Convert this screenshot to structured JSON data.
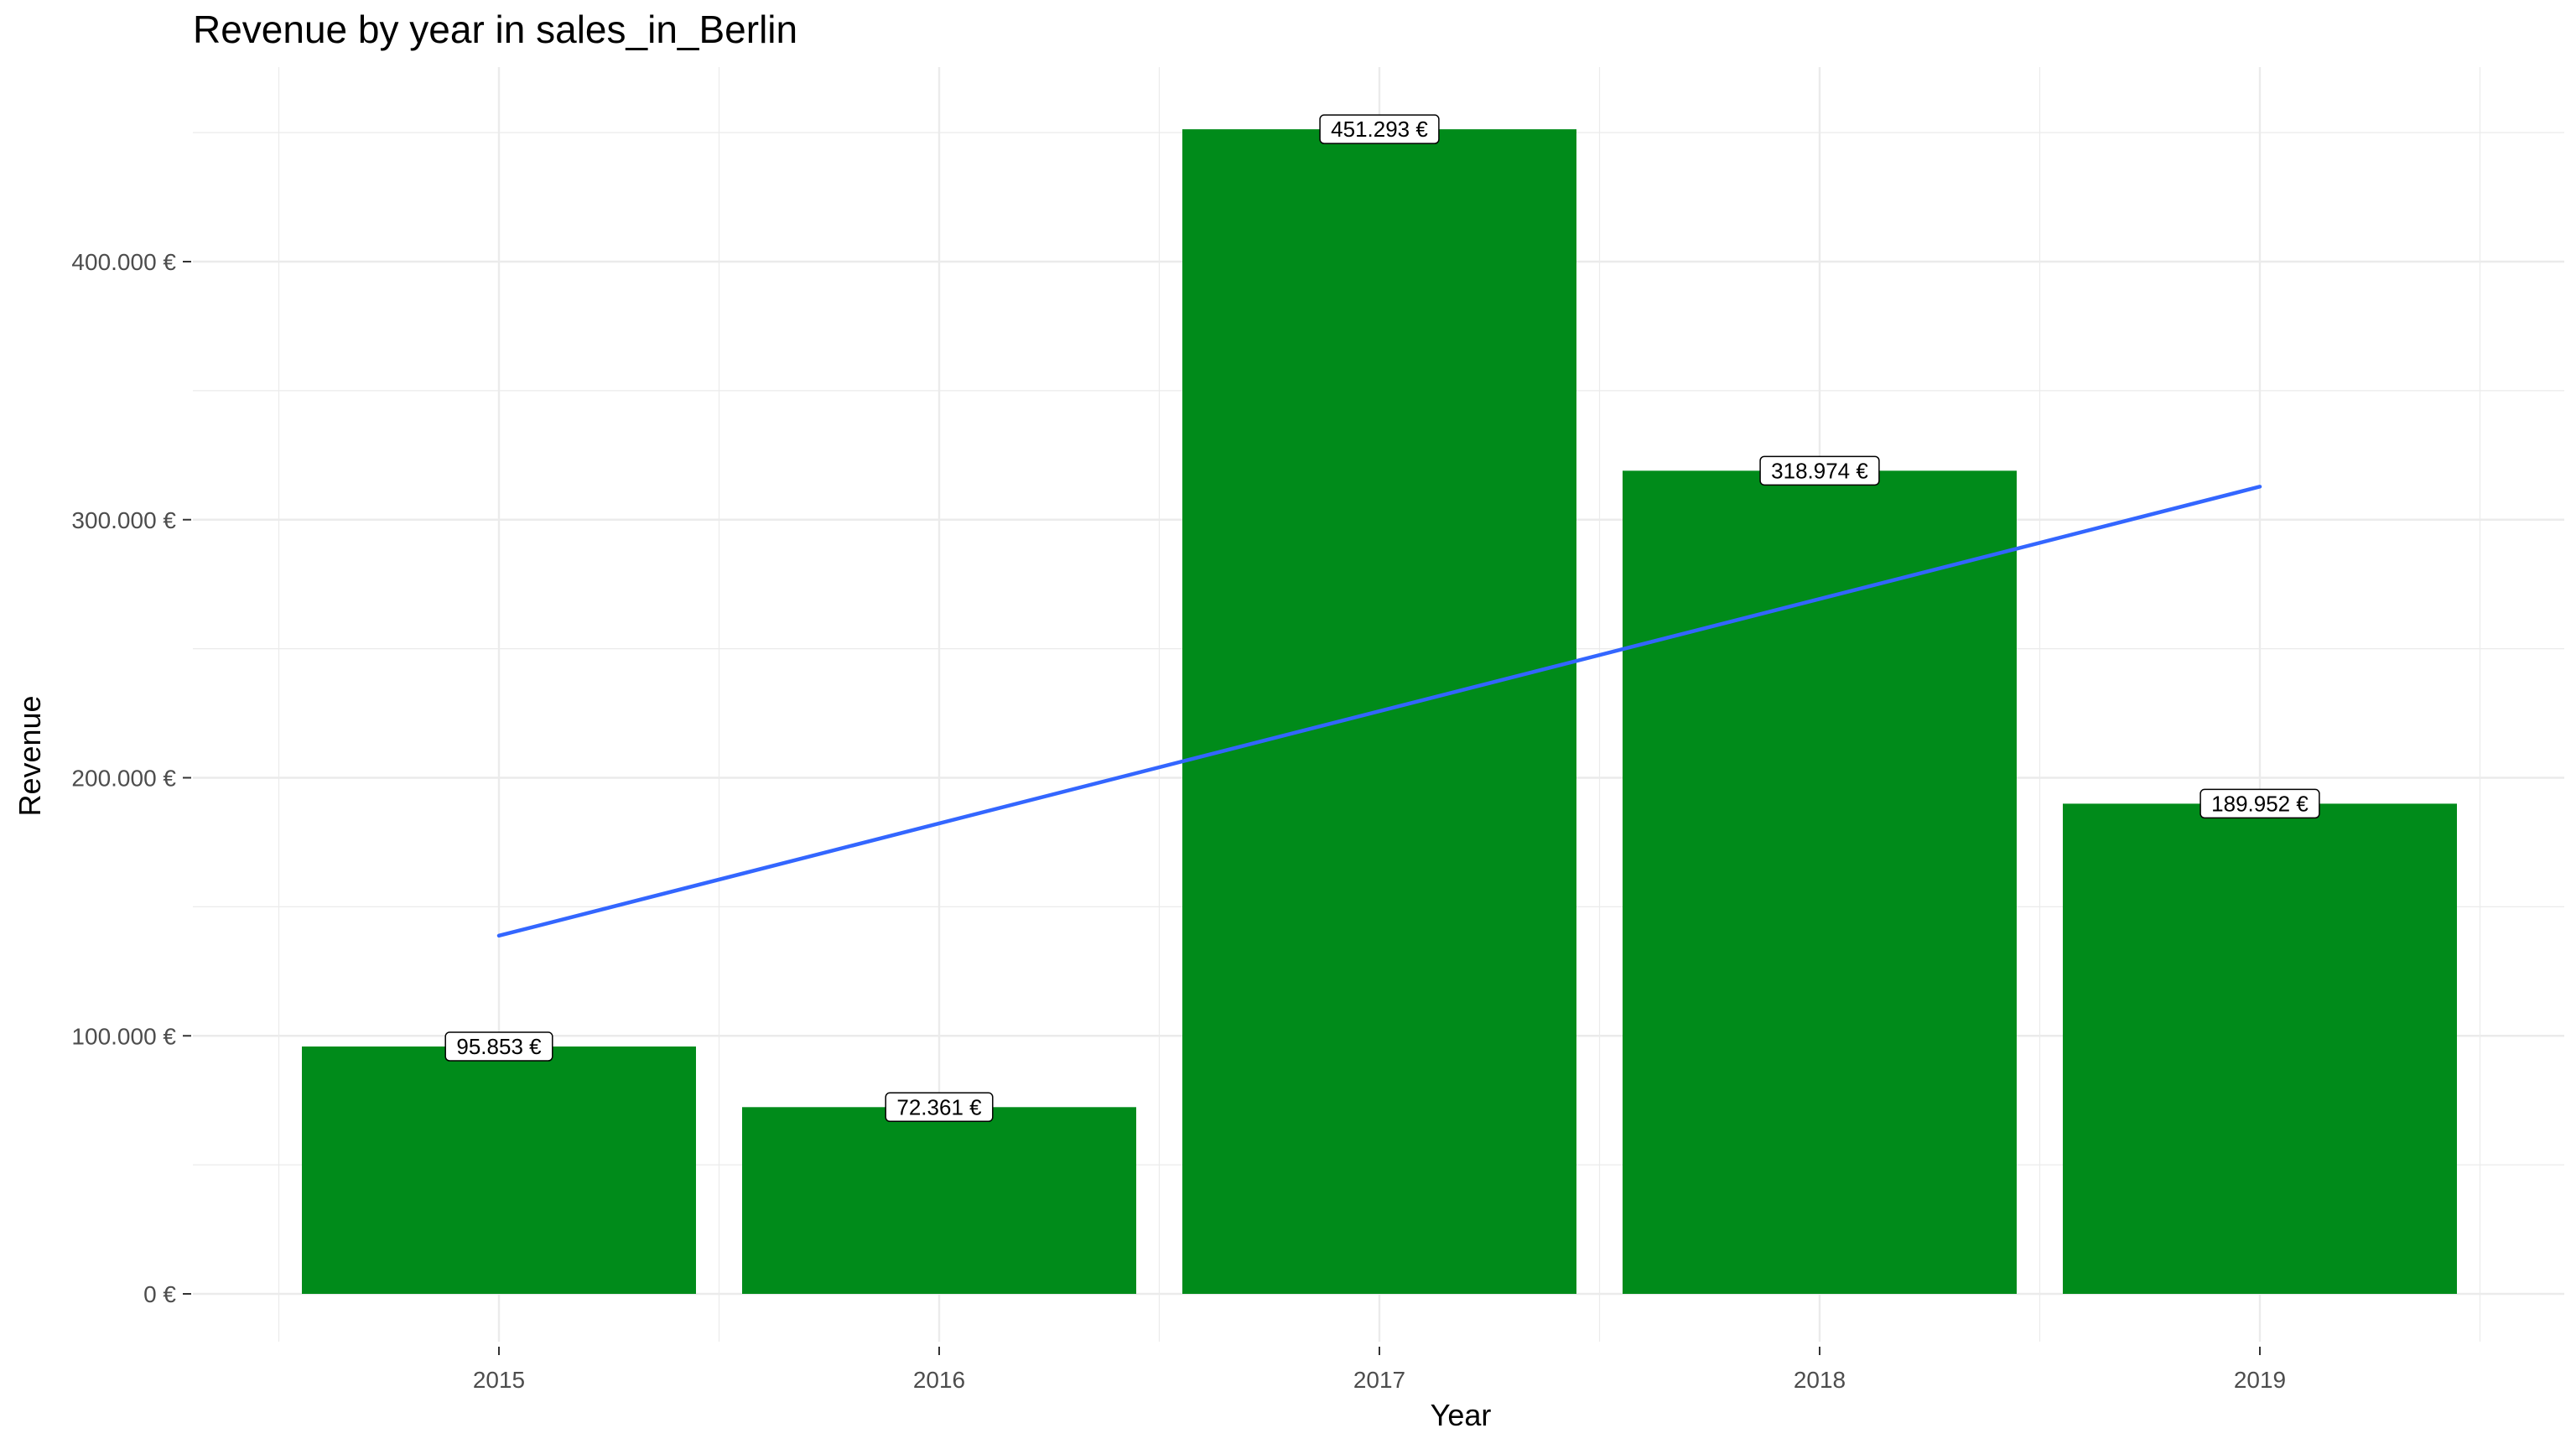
{
  "chart_data": {
    "type": "bar",
    "title": "Revenue by year in sales_in_Berlin",
    "xlabel": "Year",
    "ylabel": "Revenue",
    "categories": [
      "2015",
      "2016",
      "2017",
      "2018",
      "2019"
    ],
    "values": [
      95853,
      72361,
      451293,
      318974,
      189952
    ],
    "data_labels": [
      "95.853 €",
      "72.361 €",
      "451.293 €",
      "318.974 €",
      "189.952 €"
    ],
    "ylim": [
      0,
      470000
    ],
    "yticks": [
      0,
      100000,
      200000,
      300000,
      400000
    ],
    "ytick_labels": [
      "0 €",
      "100.000 €",
      "200.000 €",
      "300.000 €",
      "400.000 €"
    ],
    "trend_line": {
      "type": "linear",
      "x": [
        "2015",
        "2019"
      ],
      "y": [
        138800,
        312800
      ]
    },
    "grid": true,
    "legend": "none",
    "colors": {
      "bar": "#008B1A",
      "trend": "#3366FF",
      "grid": "#EBEBEB"
    }
  }
}
